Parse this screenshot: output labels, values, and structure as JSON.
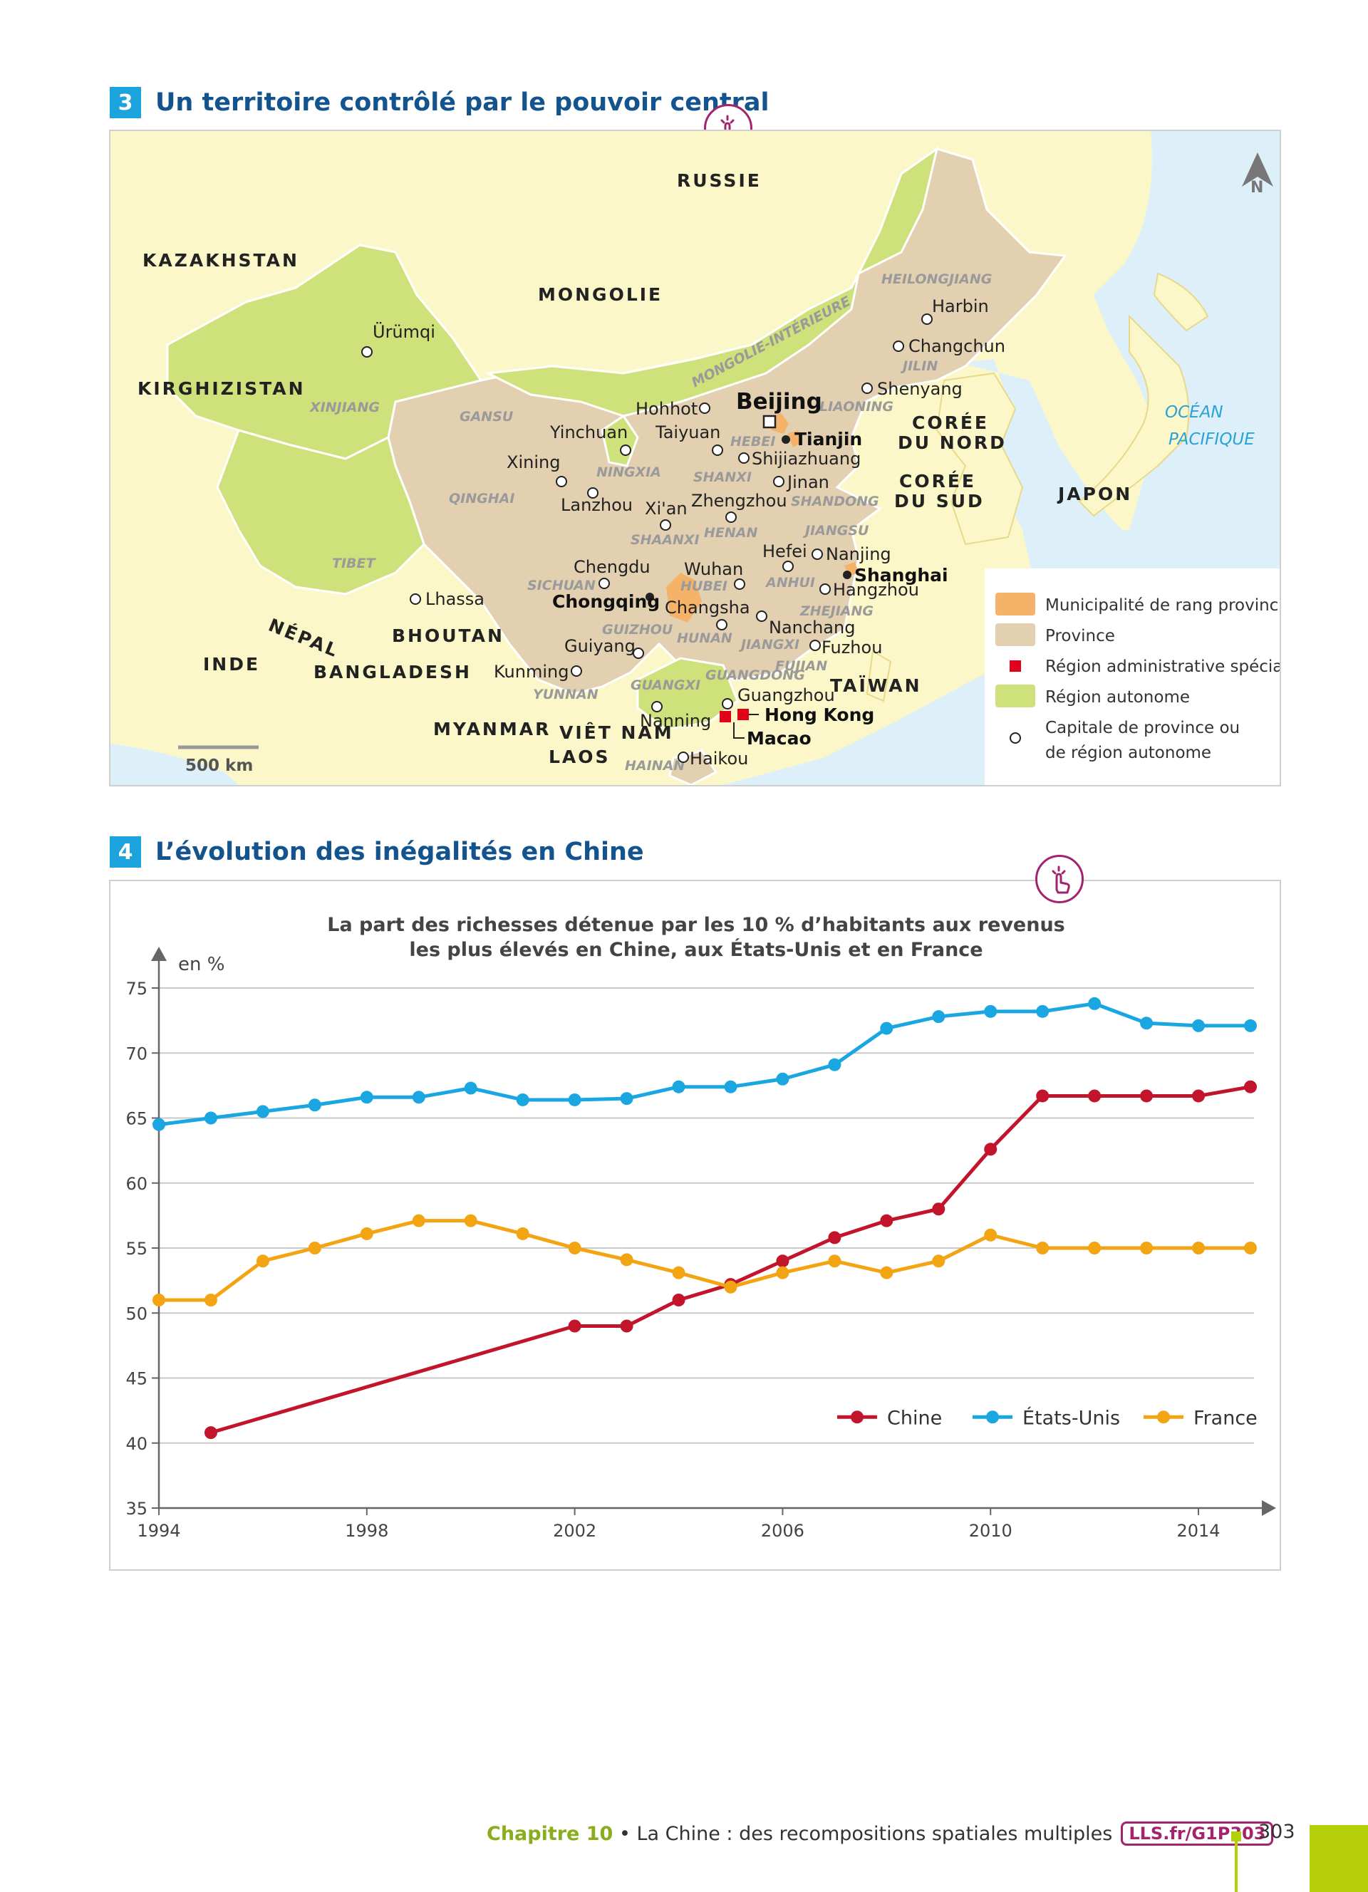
{
  "section3": {
    "number": "3",
    "title": "Un territoire contrôlé par le pouvoir central",
    "touch_icon": "touch-hand-icon",
    "map": {
      "countries": [
        "RUSSIE",
        "KAZAKHSTAN",
        "MONGOLIE",
        "KIRGHIZISTAN",
        "CORÉE",
        "DU NORD",
        "CORÉE",
        "DU SUD",
        "JAPON",
        "NÉPAL",
        "BHOUTAN",
        "INDE",
        "BANGLADESH",
        "MYANMAR",
        "VIÊT NAM",
        "LAOS",
        "TAÏWAN"
      ],
      "ocean": [
        "OCÉAN",
        "PACIFIQUE"
      ],
      "regions": [
        "HEILONGJIANG",
        "JILIN",
        "LIAONING",
        "MONGOLIE-INTÉRIEURE",
        "XINJIANG",
        "GANSU",
        "NINGXIA",
        "HEBEI",
        "SHANXI",
        "SHANDONG",
        "QINGHAI",
        "SHAANXI",
        "HENAN",
        "JIANGSU",
        "TIBET",
        "SICHUAN",
        "HUBEI",
        "ANHUI",
        "ZHEJIANG",
        "GUIZHOU",
        "HUNAN",
        "JIANGXI",
        "FUJIAN",
        "YUNNAN",
        "GUANGXI",
        "GUANGDONG",
        "HAINAN"
      ],
      "cities": [
        "Harbin",
        "Changchun",
        "Shenyang",
        "Ürümqi",
        "Hohhot",
        "Yinchuan",
        "Taiyuan",
        "Shijiazhuang",
        "Xining",
        "Lanzhou",
        "Jinan",
        "Xi'an",
        "Zhengzhou",
        "Hefei",
        "Nanjing",
        "Wuhan",
        "Hangzhou",
        "Chengdu",
        "Changsha",
        "Nanchang",
        "Lhassa",
        "Guiyang",
        "Fuzhou",
        "Kunming",
        "Guangzhou",
        "Nanning",
        "Haikou"
      ],
      "bold_cities": [
        "Beijing",
        "Tianjin",
        "Shanghai",
        "Chongqing",
        "Hong Kong",
        "Macao"
      ],
      "scale": "500 km",
      "north": "N",
      "legend": [
        {
          "label": "Municipalité de rang provincial",
          "color": "#f5b36a"
        },
        {
          "label": "Province",
          "color": "#e2d0b1"
        },
        {
          "label": "Région administrative spéciale",
          "color": "#e2001a"
        },
        {
          "label": "Région autonome",
          "color": "#cfe17a"
        },
        {
          "label": "Capitale de province ou",
          "color": "#ffffff"
        },
        {
          "label": "de région autonome",
          "color": ""
        }
      ]
    }
  },
  "section4": {
    "number": "4",
    "title": "L’évolution des inégalités en Chine",
    "touch_icon": "touch-hand-icon"
  },
  "chart_data": {
    "type": "line",
    "title": "La part des richesses détenue par les 10 % d’habitants aux revenus",
    "subtitle": "les plus élevés en Chine, aux États-Unis et en France",
    "ylabel": "en %",
    "xlabel": "",
    "ylim": [
      35,
      75
    ],
    "yticks": [
      35,
      40,
      45,
      50,
      55,
      60,
      65,
      70,
      75
    ],
    "xlim": [
      1994,
      2015
    ],
    "xticks": [
      1994,
      1998,
      2002,
      2006,
      2010,
      2014
    ],
    "grid": true,
    "legend_position": "bottom-right",
    "series": [
      {
        "name": "Chine",
        "color": "#c2152b",
        "x": [
          1995,
          2002,
          2003,
          2004,
          2005,
          2006,
          2007,
          2008,
          2009,
          2010,
          2011,
          2012,
          2013,
          2014,
          2015
        ],
        "values": [
          40.8,
          49,
          49,
          51,
          52.2,
          54,
          55.8,
          57.1,
          58,
          62.6,
          66.7,
          66.7,
          66.7,
          66.7,
          67.4
        ]
      },
      {
        "name": "États-Unis",
        "color": "#1aa6e0",
        "x": [
          1994,
          1995,
          1996,
          1997,
          1998,
          1999,
          2000,
          2001,
          2002,
          2003,
          2004,
          2005,
          2006,
          2007,
          2008,
          2009,
          2010,
          2011,
          2012,
          2013,
          2014,
          2015
        ],
        "values": [
          64.5,
          65,
          65.5,
          66,
          66.6,
          66.6,
          67.3,
          66.4,
          66.4,
          66.5,
          67.4,
          67.4,
          68,
          69.1,
          71.9,
          72.8,
          73.2,
          73.2,
          73.8,
          72.3,
          72.1,
          72.1
        ]
      },
      {
        "name": "France",
        "color": "#f2a413",
        "x": [
          1994,
          1995,
          1996,
          1997,
          1998,
          1999,
          2000,
          2001,
          2002,
          2003,
          2004,
          2005,
          2006,
          2007,
          2008,
          2009,
          2010,
          2011,
          2012,
          2013,
          2014,
          2015
        ],
        "values": [
          51,
          51,
          54,
          55,
          56.1,
          57.1,
          57.1,
          56.1,
          55,
          54.1,
          53.1,
          52,
          53.1,
          54,
          53.1,
          54,
          56,
          55,
          55,
          55,
          55,
          55
        ]
      }
    ]
  },
  "footer": {
    "chapter": "Chapitre 10",
    "separator": " • ",
    "text": "La Chine : des recompositions spatiales multiples",
    "link": "LLS.fr/G1P303",
    "page": "303"
  }
}
